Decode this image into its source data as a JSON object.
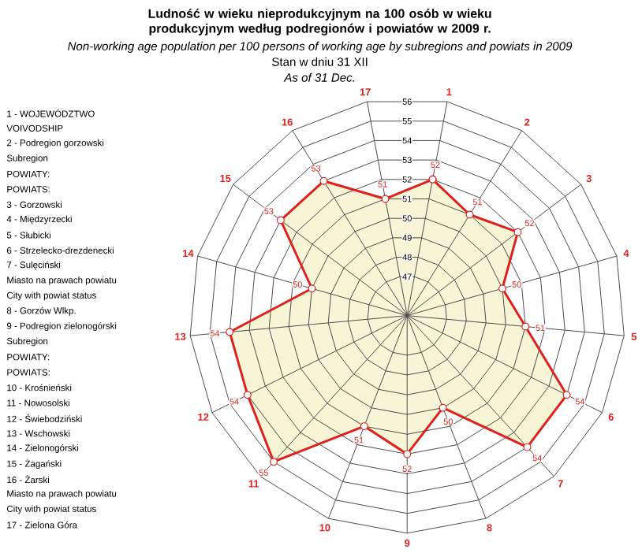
{
  "chart_data": {
    "type": "radar",
    "title": "Ludność w wieku nieprodukcyjnym na 100 osób w wieku produkcyjnym według podregionów i powiatów w 2009 r.",
    "subtitle": "Non-working age population per 100 persons of working age by subregions and powiats in 2009",
    "annotations": [
      "Stan w dniu 31 XII",
      "As of 31 Dec.",
      "1 - WOJEWÓDZTWO",
      "VOIVODSHIP",
      "2 - Podregion gorzowski",
      "Subregion",
      "POWIATY:",
      "POWIATS:",
      "3 - Gorzowski",
      "4 - Międzyrzecki",
      "5 - Słubicki",
      "6 - Strzelecko-drezdenecki",
      "7 - Sulęciński",
      "Miasto na prawach powiatu",
      "City with powiat status",
      "8 - Gorzów Wlkp.",
      "9 - Podregion zielonogórski",
      "Subregion",
      "POWIATY:",
      "POWIATS:",
      "10 - Krośnieński",
      "11 - Nowosolski",
      "12 - Świebodziński",
      "13 - Wschowski",
      "14 - Zielonogórski",
      "15 - Żagański",
      "16 - Żarski",
      "Miasto na prawach powiatu",
      "City with powiat status",
      "17 - Zielona Góra"
    ],
    "categories": [
      "1",
      "2",
      "3",
      "4",
      "5",
      "6",
      "7",
      "8",
      "9",
      "10",
      "11",
      "12",
      "13",
      "14",
      "15",
      "16",
      "17"
    ],
    "series": [
      {
        "color": "#e0201c",
        "values": [
          52,
          51,
          52,
          50,
          51,
          54,
          54,
          50,
          52,
          51,
          55,
          54,
          54,
          50,
          53,
          53,
          51
        ]
      }
    ],
    "ylim": [
      45,
      56
    ],
    "yticks": [
      47,
      48,
      49,
      50,
      51,
      52,
      53,
      54,
      55,
      56
    ],
    "grid": true,
    "marker": "circle",
    "data_labels": true
  }
}
